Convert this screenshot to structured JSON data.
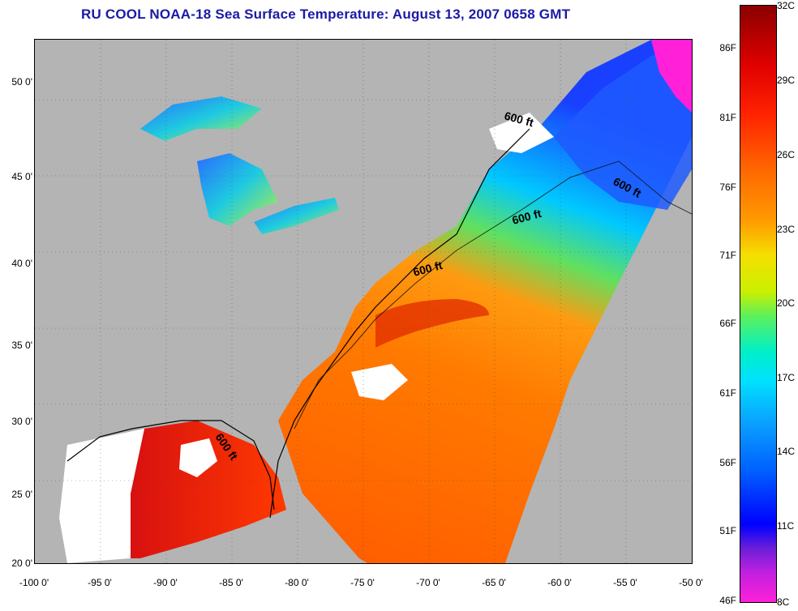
{
  "title": "RU COOL  NOAA-18  Sea Surface Temperature:  August 13, 2007 0658 GMT",
  "axes": {
    "lat_labels": [
      "50 0'",
      "45 0'",
      "40 0'",
      "35 0'",
      "30 0'",
      "25 0'",
      "20 0'"
    ],
    "lon_labels": [
      "-100 0'",
      "-95 0'",
      "-90 0'",
      "-85 0'",
      "-80 0'",
      "-75 0'",
      "-70 0'",
      "-65 0'",
      "-60 0'",
      "-55 0'",
      "-50 0'"
    ]
  },
  "isobath_labels": [
    "600 ft",
    "600 ft",
    "600 ft",
    "600 ft",
    "600 ft"
  ],
  "colorbar": {
    "celsius": [
      "32C",
      "29C",
      "26C",
      "23C",
      "20C",
      "17C",
      "14C",
      "11C",
      "8C"
    ],
    "fahrenheit": [
      "86F",
      "81F",
      "76F",
      "71F",
      "66F",
      "61F",
      "56F",
      "51F",
      "46F"
    ],
    "min_c": 8,
    "max_c": 32
  },
  "colors": {
    "land": "#b4b4b4",
    "cloud": "#ffffff",
    "title": "#1a1aa6"
  }
}
